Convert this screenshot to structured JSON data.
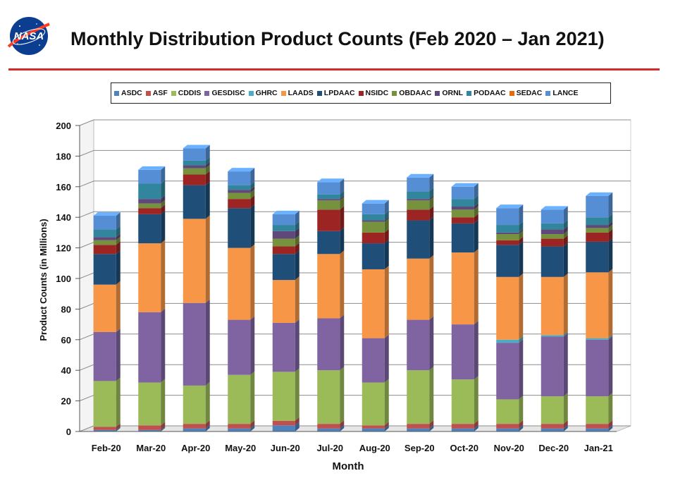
{
  "header": {
    "title": "Monthly Distribution Product Counts (Feb 2020 – Jan 2021)",
    "logo_text": "NASA"
  },
  "colors": {
    "rule": "#d42a2a"
  },
  "chart_data": {
    "type": "bar",
    "stacked": true,
    "title": "Monthly Distribution Product Counts (Feb 2020 – Jan 2021)",
    "xlabel": "Month",
    "ylabel": "Product Counts (in Millions)",
    "ylim": [
      0,
      200
    ],
    "yticks": [
      "0",
      "20",
      "40",
      "60",
      "80",
      "100",
      "120",
      "140",
      "160",
      "180",
      "200"
    ],
    "grid": true,
    "legend_position": "top",
    "categories": [
      "Feb-20",
      "Mar-20",
      "Apr-20",
      "May-20",
      "Jun-20",
      "Jul-20",
      "Aug-20",
      "Sep-20",
      "Oct-20",
      "Nov-20",
      "Dec-20",
      "Jan-21"
    ],
    "series": [
      {
        "name": "ASDC",
        "color": "#4f81bd",
        "values": [
          1,
          1,
          2,
          2,
          4,
          2,
          2,
          2,
          2,
          2,
          2,
          2
        ]
      },
      {
        "name": "ASF",
        "color": "#c0504d",
        "values": [
          2,
          3,
          3,
          3,
          3,
          3,
          2,
          3,
          3,
          3,
          3,
          3
        ]
      },
      {
        "name": "CDDIS",
        "color": "#9bbb59",
        "values": [
          30,
          28,
          25,
          32,
          32,
          35,
          28,
          35,
          29,
          16,
          18,
          18
        ]
      },
      {
        "name": "GESDISC",
        "color": "#8064a2",
        "values": [
          32,
          46,
          54,
          36,
          32,
          34,
          29,
          33,
          36,
          37,
          39,
          37
        ]
      },
      {
        "name": "GHRC",
        "color": "#4bacc6",
        "values": [
          0,
          0,
          0,
          0,
          0,
          0,
          0,
          0,
          0,
          2,
          1,
          1
        ]
      },
      {
        "name": "LAADS",
        "color": "#f79646",
        "values": [
          31,
          45,
          55,
          47,
          28,
          42,
          45,
          40,
          47,
          41,
          38,
          43
        ]
      },
      {
        "name": "LPDAAC",
        "color": "#1f4e79",
        "values": [
          20,
          19,
          22,
          26,
          17,
          15,
          17,
          25,
          19,
          21,
          20,
          20
        ]
      },
      {
        "name": "NSIDC",
        "color": "#9c2423",
        "values": [
          6,
          4,
          7,
          6,
          5,
          14,
          7,
          7,
          4,
          3,
          5,
          6
        ]
      },
      {
        "name": "OBDAAC",
        "color": "#76923c",
        "values": [
          3,
          3,
          4,
          4,
          5,
          6,
          7,
          6,
          5,
          4,
          3,
          3
        ]
      },
      {
        "name": "ORNL",
        "color": "#5f497a",
        "values": [
          2,
          3,
          2,
          2,
          5,
          1,
          1,
          1,
          2,
          1,
          3,
          2
        ]
      },
      {
        "name": "PODAAC",
        "color": "#31859c",
        "values": [
          5,
          10,
          3,
          3,
          4,
          3,
          4,
          5,
          5,
          5,
          4,
          5
        ]
      },
      {
        "name": "SEDAC",
        "color": "#e46c0a",
        "values": [
          0,
          0,
          0,
          0,
          0,
          0,
          0,
          0,
          0,
          0,
          0,
          0
        ]
      },
      {
        "name": "LANCE",
        "color": "#558ed5",
        "values": [
          9,
          9,
          8,
          9,
          7,
          8,
          7,
          9,
          8,
          11,
          9,
          14
        ]
      }
    ]
  }
}
